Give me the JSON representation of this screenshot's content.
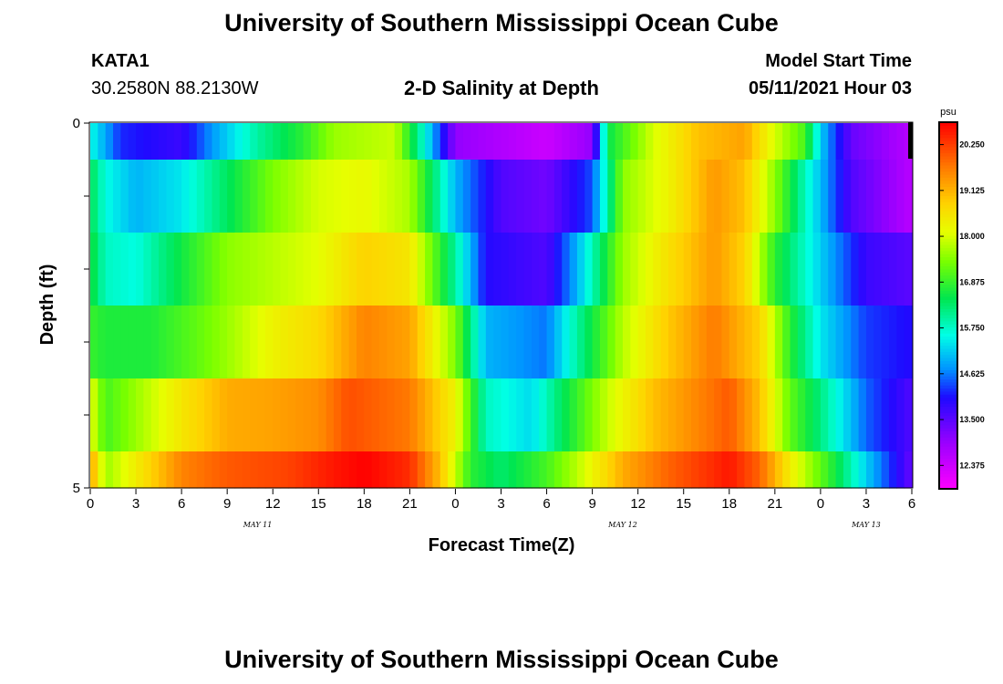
{
  "header": {
    "title_top": "University of Southern Mississippi Ocean Cube",
    "title_bottom": "University of Southern Mississippi Ocean Cube",
    "station_id": "KATA1",
    "station_coords": "30.2580N  88.2130W",
    "plot_title": "2-D Salinity at Depth",
    "model_start_label": "Model Start Time",
    "model_start_value": "05/11/2021 Hour 03"
  },
  "chart_data": {
    "type": "heatmap",
    "title": "2-D Salinity at Depth",
    "xlabel": "Forecast Time(Z)",
    "ylabel": "Depth (ft)",
    "x_ticks": [
      "0",
      "3",
      "6",
      "9",
      "12",
      "15",
      "18",
      "21",
      "0",
      "3",
      "6",
      "9",
      "12",
      "15",
      "18",
      "21",
      "0",
      "3",
      "6"
    ],
    "y_ticks": [
      "0",
      "5"
    ],
    "date_labels": [
      {
        "text": "MAY 11",
        "at_hour": 11
      },
      {
        "text": "MAY 12",
        "at_hour": 35
      },
      {
        "text": "MAY 13",
        "at_hour": 51
      }
    ],
    "xlim_hours": [
      0,
      54
    ],
    "ylim_ft": [
      0,
      5
    ],
    "colorbar": {
      "unit": "psu",
      "min": 11.8,
      "max": 20.8,
      "ticks": [
        "12.375",
        "13.500",
        "14.625",
        "15.750",
        "16.875",
        "18.000",
        "19.125",
        "20.250"
      ],
      "tick_values": [
        12.375,
        13.5,
        14.625,
        15.75,
        16.875,
        18.0,
        19.125,
        20.25
      ]
    },
    "rows": [
      {
        "depth_range": [
          0.0,
          0.5
        ],
        "knots": [
          [
            0,
            15.6
          ],
          [
            2,
            14.2
          ],
          [
            6,
            13.8
          ],
          [
            8,
            14.8
          ],
          [
            11,
            16.0
          ],
          [
            14,
            16.8
          ],
          [
            16,
            17.6
          ],
          [
            20,
            17.9
          ],
          [
            22,
            15.6
          ],
          [
            24,
            13.0
          ],
          [
            30,
            12.4
          ],
          [
            33,
            13.0
          ],
          [
            34,
            16.5
          ],
          [
            37,
            18.0
          ],
          [
            40,
            19.0
          ],
          [
            43,
            19.3
          ],
          [
            45,
            18.0
          ],
          [
            47,
            17.0
          ],
          [
            48,
            15.2
          ],
          [
            50,
            13.4
          ],
          [
            54,
            12.6
          ]
        ]
      },
      {
        "depth_range": [
          0.5,
          1.5
        ],
        "knots": [
          [
            0,
            16.5
          ],
          [
            1,
            15.6
          ],
          [
            3,
            15.0
          ],
          [
            6,
            15.4
          ],
          [
            9,
            16.4
          ],
          [
            12,
            17.4
          ],
          [
            15,
            18.0
          ],
          [
            18,
            18.2
          ],
          [
            21,
            17.7
          ],
          [
            24,
            15.0
          ],
          [
            27,
            13.6
          ],
          [
            30,
            13.3
          ],
          [
            33,
            14.4
          ],
          [
            35,
            17.5
          ],
          [
            38,
            18.3
          ],
          [
            41,
            19.4
          ],
          [
            43,
            19.0
          ],
          [
            45,
            17.5
          ],
          [
            47,
            15.8
          ],
          [
            50,
            13.6
          ],
          [
            54,
            12.6
          ]
        ]
      },
      {
        "depth_range": [
          1.5,
          2.5
        ],
        "knots": [
          [
            0,
            16.7
          ],
          [
            1,
            15.8
          ],
          [
            3,
            15.6
          ],
          [
            6,
            16.6
          ],
          [
            9,
            17.5
          ],
          [
            12,
            17.8
          ],
          [
            15,
            18.1
          ],
          [
            18,
            18.8
          ],
          [
            21,
            18.5
          ],
          [
            24,
            16.0
          ],
          [
            26,
            14.0
          ],
          [
            30,
            13.6
          ],
          [
            32,
            15.0
          ],
          [
            35,
            17.6
          ],
          [
            38,
            18.6
          ],
          [
            41,
            19.4
          ],
          [
            43,
            18.8
          ],
          [
            45,
            16.8
          ],
          [
            48,
            15.2
          ],
          [
            51,
            13.8
          ],
          [
            54,
            13.5
          ]
        ]
      },
      {
        "depth_range": [
          2.5,
          3.5
        ],
        "knots": [
          [
            0,
            16.9
          ],
          [
            1,
            16.7
          ],
          [
            4,
            16.7
          ],
          [
            7,
            17.2
          ],
          [
            9,
            17.6
          ],
          [
            12,
            18.3
          ],
          [
            15,
            18.7
          ],
          [
            18,
            19.6
          ],
          [
            21,
            19.3
          ],
          [
            24,
            17.4
          ],
          [
            26,
            15.0
          ],
          [
            30,
            14.6
          ],
          [
            32,
            16.0
          ],
          [
            35,
            17.8
          ],
          [
            38,
            18.9
          ],
          [
            41,
            19.7
          ],
          [
            44,
            18.8
          ],
          [
            46,
            16.8
          ],
          [
            48,
            15.4
          ],
          [
            51,
            14.3
          ],
          [
            54,
            14.0
          ]
        ]
      },
      {
        "depth_range": [
          3.5,
          4.5
        ],
        "knots": [
          [
            0,
            18.2
          ],
          [
            1,
            17.0
          ],
          [
            3,
            17.6
          ],
          [
            6,
            18.5
          ],
          [
            9,
            19.2
          ],
          [
            12,
            19.3
          ],
          [
            15,
            19.5
          ],
          [
            17,
            20.1
          ],
          [
            21,
            19.7
          ],
          [
            24,
            18.3
          ],
          [
            26,
            15.8
          ],
          [
            29,
            15.3
          ],
          [
            31,
            16.4
          ],
          [
            34,
            17.9
          ],
          [
            37,
            19.0
          ],
          [
            40,
            19.6
          ],
          [
            42,
            20.0
          ],
          [
            44,
            19.0
          ],
          [
            46,
            17.2
          ],
          [
            48,
            16.2
          ],
          [
            51,
            14.5
          ],
          [
            54,
            13.6
          ]
        ]
      },
      {
        "depth_range": [
          4.5,
          5.0
        ],
        "knots": [
          [
            0,
            19.4
          ],
          [
            1,
            17.6
          ],
          [
            3,
            18.4
          ],
          [
            6,
            19.6
          ],
          [
            9,
            20.0
          ],
          [
            13,
            20.2
          ],
          [
            16,
            20.6
          ],
          [
            18,
            20.8
          ],
          [
            21,
            20.4
          ],
          [
            23,
            19.0
          ],
          [
            25,
            16.8
          ],
          [
            27,
            16.3
          ],
          [
            30,
            17.0
          ],
          [
            32,
            17.8
          ],
          [
            35,
            19.2
          ],
          [
            38,
            19.9
          ],
          [
            42,
            20.6
          ],
          [
            44,
            19.9
          ],
          [
            46,
            18.4
          ],
          [
            49,
            16.6
          ],
          [
            51,
            15.2
          ],
          [
            54,
            13.4
          ]
        ]
      }
    ]
  },
  "colors": {
    "text": "#000000",
    "frame": "#000000",
    "background": "#ffffff"
  }
}
